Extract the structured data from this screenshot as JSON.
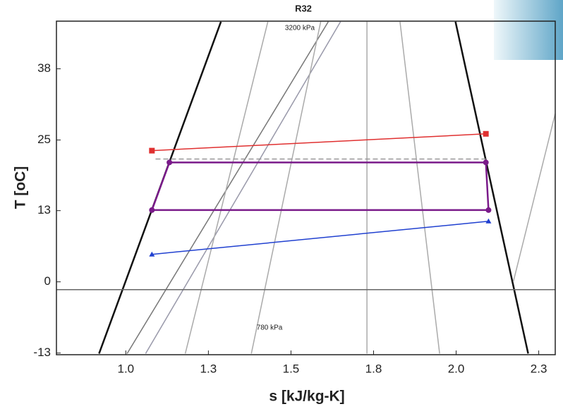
{
  "chart_data": {
    "type": "line",
    "title": "R32",
    "x_label": "s [kJ/kg-K]",
    "y_label": "T [oC]",
    "xlim": [
      0.79,
      2.3
    ],
    "ylim": [
      -13.0,
      46.5
    ],
    "xticks": [
      {
        "value": 1.0,
        "label": "1.0"
      },
      {
        "value": 1.25,
        "label": "1.3"
      },
      {
        "value": 1.5,
        "label": "1.5"
      },
      {
        "value": 1.75,
        "label": "1.8"
      },
      {
        "value": 2.0,
        "label": "2.0"
      },
      {
        "value": 2.25,
        "label": "2.3"
      }
    ],
    "yticks": [
      {
        "value": -12.7,
        "label": "-13"
      },
      0,
      {
        "value": 12.7,
        "label": "13"
      },
      {
        "value": 25.3,
        "label": "25"
      },
      38
    ],
    "annotations": [
      "3200 kPa",
      "780 kPa"
    ],
    "series": [
      {
        "color": "#111111",
        "width": 2.5,
        "x": [
          0.919,
          1.288
        ],
        "values": [
          -12.8,
          46.4
        ]
      },
      {
        "color": "#111111",
        "width": 2.5,
        "x": [
          1.998,
          2.218
        ],
        "values": [
          46.4,
          -12.8
        ]
      },
      {
        "color": "#777777",
        "width": 1.5,
        "x": [
          1.004,
          1.613
        ],
        "values": [
          -12.8,
          46.4
        ]
      },
      {
        "color": "#9999aa",
        "width": 1.5,
        "x": [
          1.06,
          1.65
        ],
        "values": [
          -12.8,
          46.4
        ]
      },
      {
        "color": "#aaaaaa",
        "width": 1.5,
        "x": [
          1.18,
          1.43
        ],
        "values": [
          -12.8,
          46.4
        ]
      },
      {
        "color": "#aaaaaa",
        "width": 1.5,
        "x": [
          1.38,
          1.59
        ],
        "values": [
          -12.8,
          46.4
        ]
      },
      {
        "color": "#aaaaaa",
        "width": 1.5,
        "x": [
          1.73,
          1.73
        ],
        "values": [
          -12.8,
          46.4
        ]
      },
      {
        "color": "#aaaaaa",
        "width": 1.5,
        "x": [
          1.95,
          1.83
        ],
        "values": [
          -12.8,
          46.4
        ]
      },
      {
        "color": "#aaaaaa",
        "width": 1.5,
        "x": [
          2.173,
          2.3
        ],
        "values": [
          0,
          30
        ]
      },
      {
        "color": "#666666",
        "width": 1.5,
        "x": [
          0.79,
          2.3
        ],
        "values": [
          -1.4,
          -1.4
        ]
      },
      {
        "color": "#999999",
        "width": 1.5,
        "dash": true,
        "x": [
          1.09,
          2.09
        ],
        "values": [
          21.9,
          21.9
        ]
      },
      {
        "color": "#e03030",
        "width": 1.5,
        "marker": "square",
        "x": [
          1.079,
          2.09
        ],
        "values": [
          23.4,
          26.4
        ]
      },
      {
        "color": "#2040d0",
        "width": 1.5,
        "marker": "triangle",
        "x": [
          1.079,
          2.098
        ],
        "values": [
          4.9,
          10.8
        ]
      },
      {
        "color": "#7a1a8a",
        "width": 2.5,
        "marker": "circle",
        "x": [
          1.132,
          2.09,
          2.098,
          1.079,
          1.132
        ],
        "values": [
          21.3,
          21.3,
          12.8,
          12.8,
          21.3
        ]
      }
    ]
  }
}
